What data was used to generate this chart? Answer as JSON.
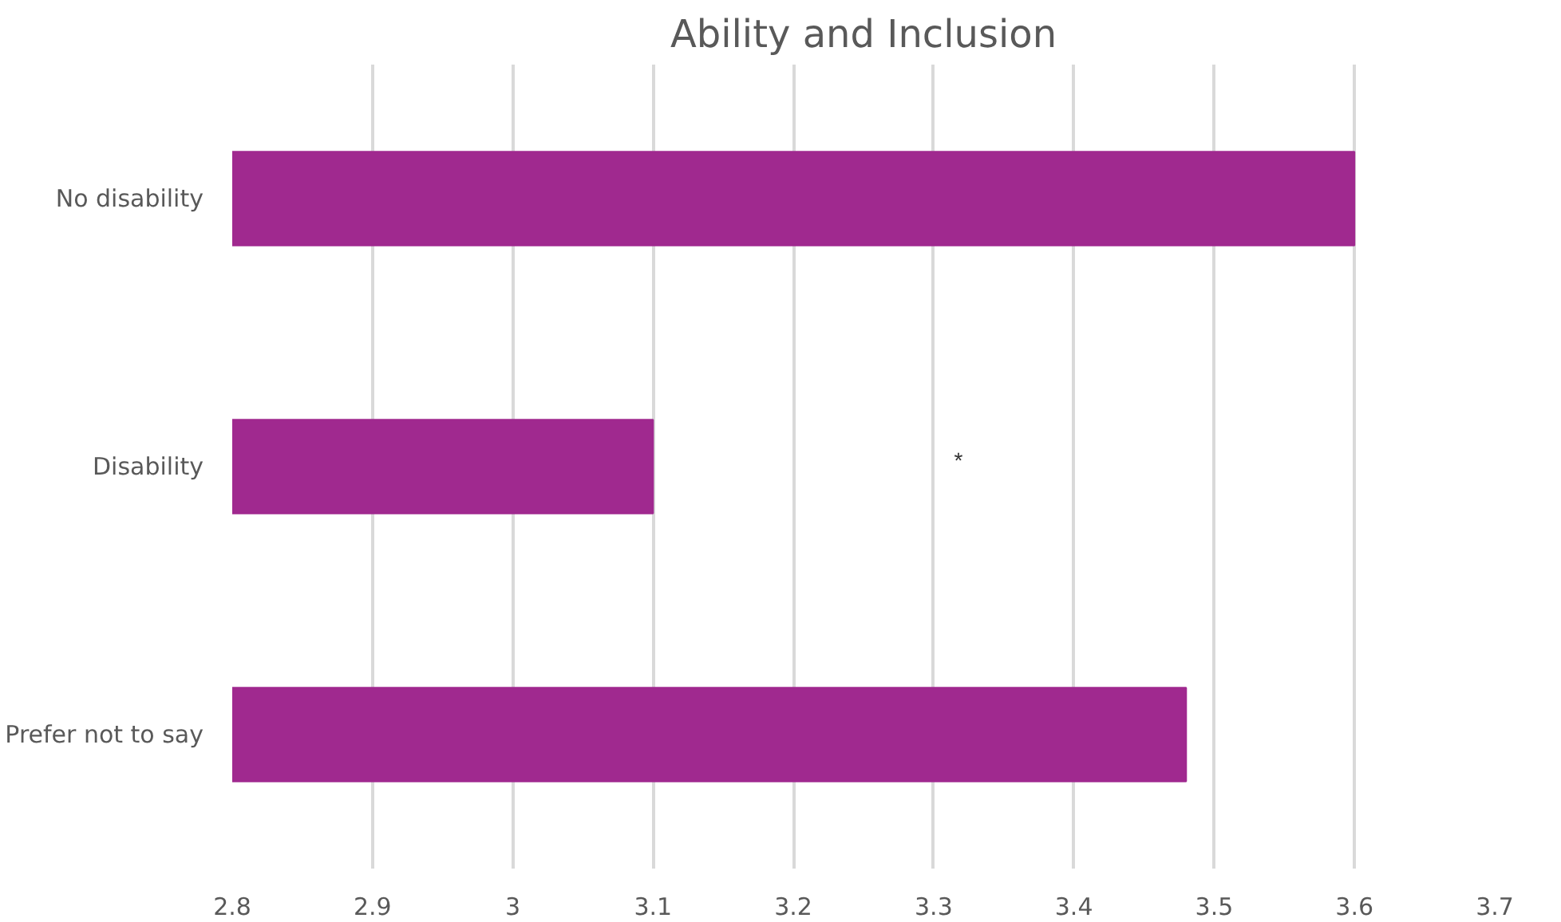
{
  "chart_data": {
    "type": "bar",
    "orientation": "horizontal",
    "title": "Ability and Inclusion",
    "categories": [
      "No disability",
      "Disability",
      "Prefer not to say"
    ],
    "values": [
      3.6,
      3.1,
      3.48
    ],
    "color": "#a0298f",
    "xlim": [
      2.8,
      3.7
    ],
    "xticks": [
      2.8,
      2.9,
      3,
      3.1,
      3.2,
      3.3,
      3.4,
      3.5,
      3.6,
      3.7
    ],
    "grid": "x",
    "annotations": [
      "*"
    ]
  }
}
